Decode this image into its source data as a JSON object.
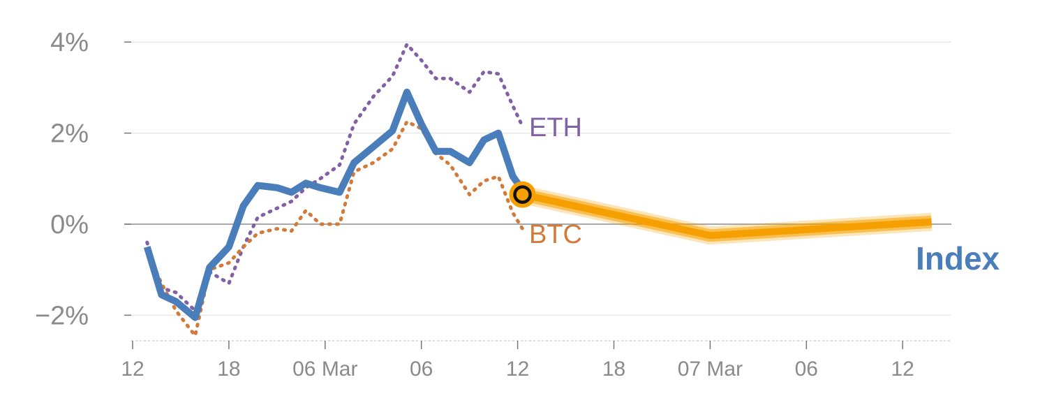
{
  "chart_data": {
    "type": "line",
    "title": "",
    "xlabel": "",
    "ylabel": "",
    "ylim": [
      -2.6,
      4.2
    ],
    "y_ticks": [
      {
        "value": 4,
        "label": "4%"
      },
      {
        "value": 2,
        "label": "2%"
      },
      {
        "value": 0,
        "label": "0%"
      },
      {
        "value": -2,
        "label": "−2%"
      }
    ],
    "x_ticks": [
      "12",
      "18",
      "06 Mar",
      "06",
      "12",
      "18",
      "07 Mar",
      "06",
      "12"
    ],
    "x_domain": [
      0,
      8.5
    ],
    "grid": true,
    "zero_line": true,
    "series": [
      {
        "name": "Index",
        "style": "solid",
        "color": "#4a7ebb",
        "points": [
          [
            0.15,
            -0.5
          ],
          [
            0.3,
            -1.55
          ],
          [
            0.45,
            -1.7
          ],
          [
            0.65,
            -2.05
          ],
          [
            0.8,
            -0.95
          ],
          [
            1.0,
            -0.5
          ],
          [
            1.15,
            0.4
          ],
          [
            1.3,
            0.85
          ],
          [
            1.5,
            0.8
          ],
          [
            1.65,
            0.7
          ],
          [
            1.8,
            0.9
          ],
          [
            1.95,
            0.8
          ],
          [
            2.15,
            0.7
          ],
          [
            2.3,
            1.35
          ],
          [
            2.5,
            1.7
          ],
          [
            2.7,
            2.05
          ],
          [
            2.85,
            2.9
          ],
          [
            3.0,
            2.2
          ],
          [
            3.15,
            1.6
          ],
          [
            3.3,
            1.6
          ],
          [
            3.5,
            1.35
          ],
          [
            3.65,
            1.85
          ],
          [
            3.8,
            2.0
          ],
          [
            3.95,
            1.05
          ],
          [
            4.05,
            0.75
          ]
        ]
      },
      {
        "name": "ETH",
        "style": "dotted",
        "color": "#8160a5",
        "points": [
          [
            0.15,
            -0.4
          ],
          [
            0.3,
            -1.4
          ],
          [
            0.45,
            -1.5
          ],
          [
            0.65,
            -1.9
          ],
          [
            0.8,
            -1.05
          ],
          [
            1.0,
            -1.3
          ],
          [
            1.15,
            -0.5
          ],
          [
            1.3,
            0.15
          ],
          [
            1.5,
            0.35
          ],
          [
            1.65,
            0.5
          ],
          [
            1.8,
            0.8
          ],
          [
            1.95,
            1.0
          ],
          [
            2.15,
            1.3
          ],
          [
            2.3,
            2.2
          ],
          [
            2.5,
            2.8
          ],
          [
            2.7,
            3.25
          ],
          [
            2.85,
            3.95
          ],
          [
            3.0,
            3.6
          ],
          [
            3.15,
            3.2
          ],
          [
            3.3,
            3.2
          ],
          [
            3.5,
            2.9
          ],
          [
            3.65,
            3.35
          ],
          [
            3.8,
            3.3
          ],
          [
            3.95,
            2.6
          ],
          [
            4.05,
            2.15
          ]
        ]
      },
      {
        "name": "BTC",
        "style": "dotted",
        "color": "#d27a3a",
        "points": [
          [
            0.15,
            -0.6
          ],
          [
            0.3,
            -1.3
          ],
          [
            0.45,
            -1.9
          ],
          [
            0.65,
            -2.45
          ],
          [
            0.8,
            -1.0
          ],
          [
            1.0,
            -0.85
          ],
          [
            1.15,
            -0.5
          ],
          [
            1.3,
            -0.2
          ],
          [
            1.5,
            -0.1
          ],
          [
            1.65,
            -0.15
          ],
          [
            1.8,
            0.3
          ],
          [
            1.95,
            0.0
          ],
          [
            2.15,
            0.0
          ],
          [
            2.3,
            1.15
          ],
          [
            2.5,
            1.35
          ],
          [
            2.7,
            1.65
          ],
          [
            2.85,
            2.25
          ],
          [
            3.0,
            2.1
          ],
          [
            3.15,
            1.55
          ],
          [
            3.3,
            1.3
          ],
          [
            3.5,
            0.65
          ],
          [
            3.65,
            0.95
          ],
          [
            3.8,
            1.05
          ],
          [
            3.95,
            0.25
          ],
          [
            4.05,
            -0.1
          ]
        ]
      }
    ],
    "forecast": {
      "name": "Index forecast",
      "color": "#f5a000",
      "points": [
        [
          4.05,
          0.65
        ],
        [
          6.0,
          -0.25
        ],
        [
          8.3,
          0.05
        ]
      ]
    },
    "marker": {
      "x": 4.05,
      "y": 0.65
    }
  },
  "labels": {
    "eth": "ETH",
    "btc": "BTC",
    "index": "Index"
  }
}
